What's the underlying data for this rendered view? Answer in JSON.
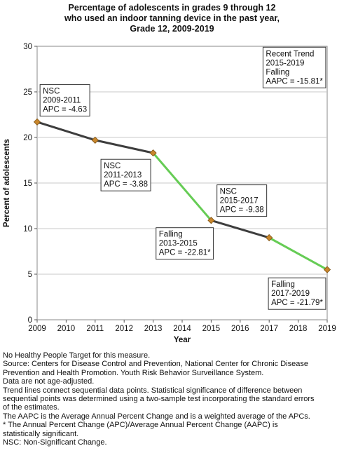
{
  "chart_data": {
    "type": "line",
    "title": [
      "Percentage of adolescents in grades 9 through 12",
      "who used an indoor tanning device in the past year,",
      "Grade 12,  2009-2019"
    ],
    "xlabel": "Year",
    "ylabel": "Percent of adolescents",
    "xlim": [
      2009,
      2019
    ],
    "ylim": [
      0,
      30
    ],
    "xticks": [
      "2009",
      "2010",
      "2011",
      "2012",
      "2013",
      "2014",
      "2015",
      "2016",
      "2017",
      "2018",
      "2019"
    ],
    "yticks": [
      "0",
      "5",
      "10",
      "15",
      "20",
      "25",
      "30"
    ],
    "grid": "horizontal",
    "points": [
      {
        "x": 2009,
        "y": 21.7
      },
      {
        "x": 2011,
        "y": 19.7
      },
      {
        "x": 2013,
        "y": 18.3
      },
      {
        "x": 2015,
        "y": 10.9
      },
      {
        "x": 2017,
        "y": 9.0
      },
      {
        "x": 2019,
        "y": 5.5
      }
    ],
    "segments": [
      {
        "from": 2009,
        "to": 2011,
        "trend": "NSC",
        "color": "#3d3d3d"
      },
      {
        "from": 2011,
        "to": 2013,
        "trend": "NSC",
        "color": "#3d3d3d"
      },
      {
        "from": 2013,
        "to": 2015,
        "trend": "Falling",
        "color": "#66cc55"
      },
      {
        "from": 2015,
        "to": 2017,
        "trend": "NSC",
        "color": "#3d3d3d"
      },
      {
        "from": 2017,
        "to": 2019,
        "trend": "Falling",
        "color": "#66cc55"
      }
    ],
    "marker_color": "#c8862c",
    "annotations": [
      {
        "lines": [
          "NSC",
          "2009-2011",
          "APC = -4.63"
        ],
        "anchor": [
          2009.1,
          25.8
        ]
      },
      {
        "lines": [
          "NSC",
          "2011-2013",
          "APC = -3.88"
        ],
        "anchor": [
          2011.2,
          17.6
        ]
      },
      {
        "lines": [
          "Falling",
          "2013-2015",
          "APC = -22.81*"
        ],
        "anchor": [
          2013.1,
          10.1
        ]
      },
      {
        "lines": [
          "NSC",
          "2015-2017",
          "APC = -9.38"
        ],
        "anchor": [
          2015.2,
          14.8
        ]
      },
      {
        "lines": [
          "Falling",
          "2017-2019",
          "APC = -21.79*"
        ],
        "anchor": [
          2018.95,
          4.6
        ],
        "align": "right"
      },
      {
        "lines": [
          "Recent Trend",
          "2015-2019",
          "Falling",
          "AAPC = -15.81*"
        ],
        "anchor": [
          2018.95,
          29.9
        ],
        "align": "right"
      }
    ]
  },
  "notes": [
    "No Healthy People Target for this measure.",
    "Source: Centers for Disease Control and Prevention, National Center for Chronic Disease",
    "Prevention and Health Promotion. Youth Risk Behavior Surveillance System.",
    "Data are not age-adjusted.",
    "Trend lines connect sequential data points. Statistical significance of difference between",
    "sequential points was determined using a two-sample test incorporating the standard errors",
    "of the estimates.",
    "The AAPC is the Average Annual Percent Change and is a weighted average of the APCs.",
    "* The Annual Percent Change (APC)/Average Annual Percent Change (AAPC) is",
    "statistically significant.",
    "NSC: Non-Significant Change."
  ]
}
